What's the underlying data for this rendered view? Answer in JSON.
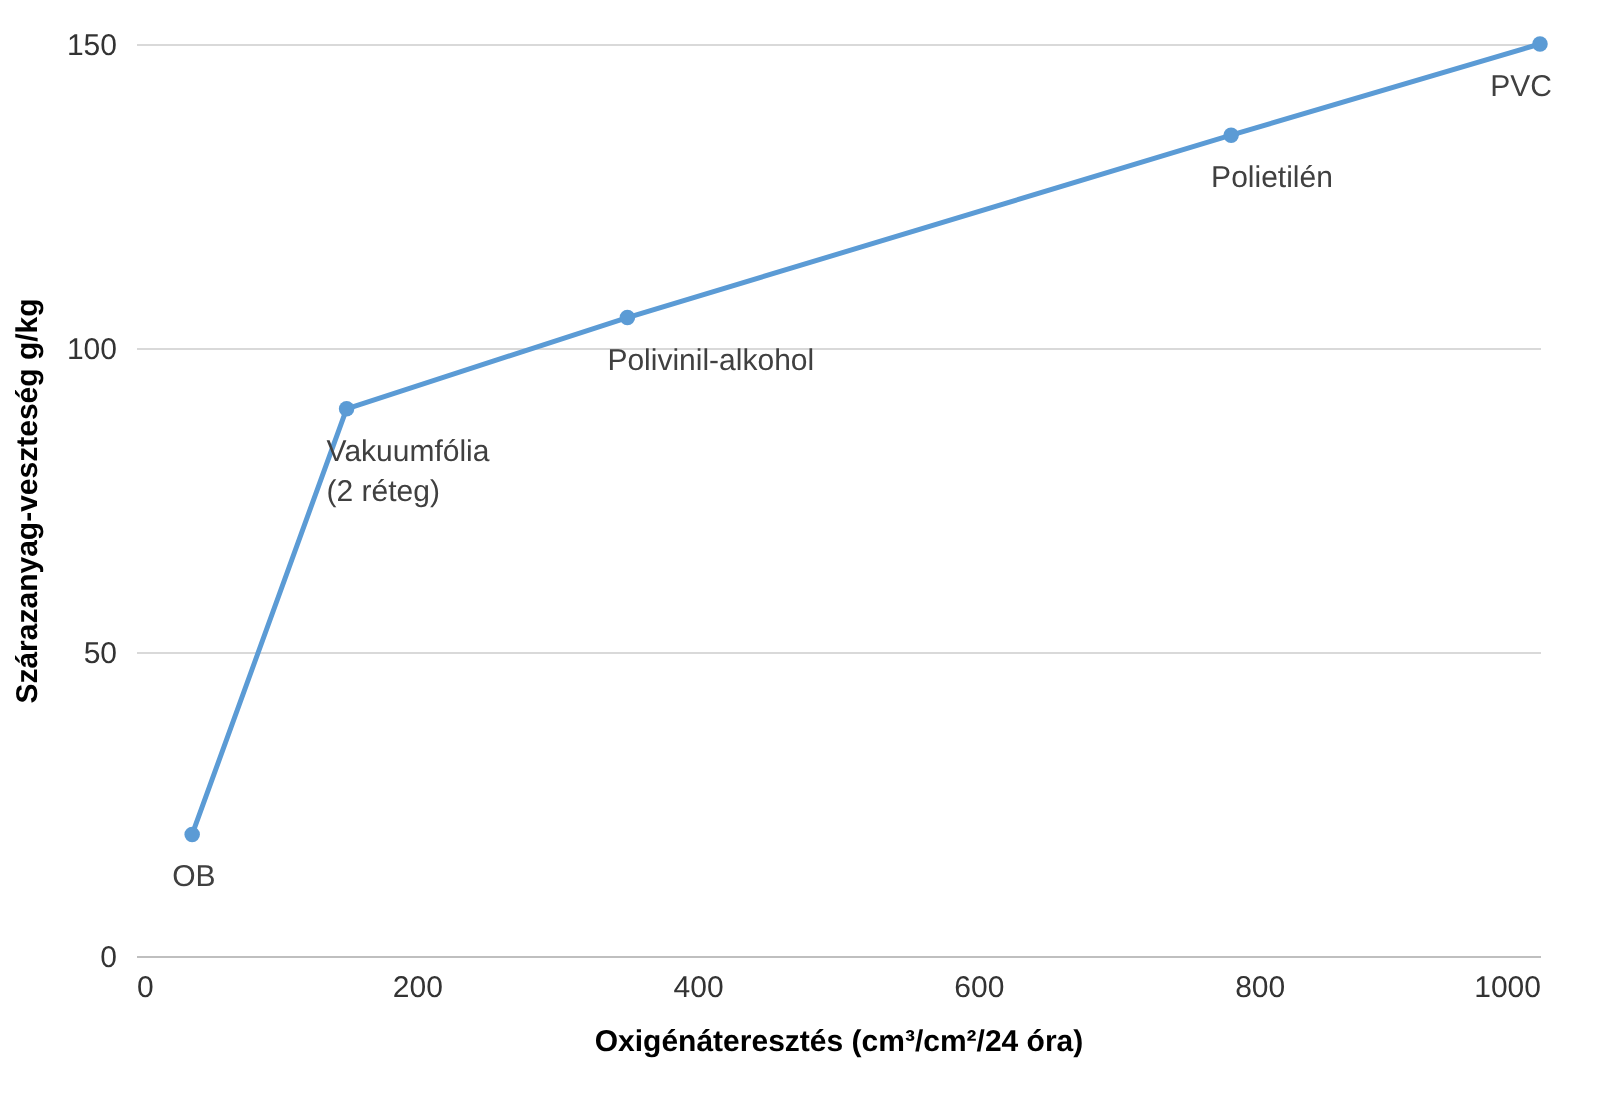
{
  "chart_data": {
    "type": "line",
    "xlabel": "Oxigénáteresztés (cm³/cm²/24 óra)",
    "ylabel": "Szárazanyag-veszteség g/kg",
    "x": [
      40,
      150,
      350,
      780,
      1000
    ],
    "series": [
      {
        "color": "#5b9bd5",
        "values": [
          20,
          90,
          105,
          135,
          150
        ]
      }
    ],
    "xlim": [
      0,
      1000
    ],
    "xticks": [
      0,
      200,
      400,
      600,
      800,
      1000
    ],
    "ylim": [
      0,
      150
    ],
    "yticks": [
      0,
      50,
      100,
      150
    ],
    "grid": "y",
    "marker": "circle",
    "line_style": "solid",
    "annotations": [
      {
        "text": "OB",
        "x": 40,
        "y": 20
      },
      {
        "text": "Vakuumfólia\n(2 réteg)",
        "x": 150,
        "y": 90
      },
      {
        "text": "Polivinil-alkohol",
        "x": 350,
        "y": 105
      },
      {
        "text": "Polietilén",
        "x": 780,
        "y": 135
      },
      {
        "text": "PVC",
        "x": 1000,
        "y": 150
      }
    ]
  }
}
